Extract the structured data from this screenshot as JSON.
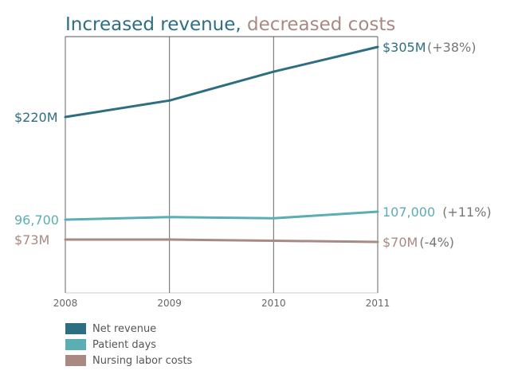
{
  "chart_data": {
    "type": "line",
    "title": {
      "part1": "Increased revenue,",
      "part2": "decreased costs"
    },
    "x": [
      "2008",
      "2009",
      "2010",
      "2011"
    ],
    "series": [
      {
        "name": "Net revenue",
        "color": "#2e6e83",
        "values": [
          220,
          240,
          275,
          305
        ],
        "start_label": "$220M",
        "end_label": "$305M",
        "end_change": "(+38%)"
      },
      {
        "name": "Patient days",
        "color": "#5aaeb4",
        "values": [
          96700,
          100000,
          98500,
          107000
        ],
        "start_label": "96,700",
        "end_label": "107,000",
        "end_change": "(+11%)"
      },
      {
        "name": "Nursing labor costs",
        "color": "#a98a82",
        "values": [
          73,
          73,
          71.5,
          70
        ],
        "start_label": "$73M",
        "end_label": "$70M",
        "end_change": "(-4%)"
      }
    ],
    "grid": "vertical lines at each year",
    "legend_position": "bottom-left"
  }
}
